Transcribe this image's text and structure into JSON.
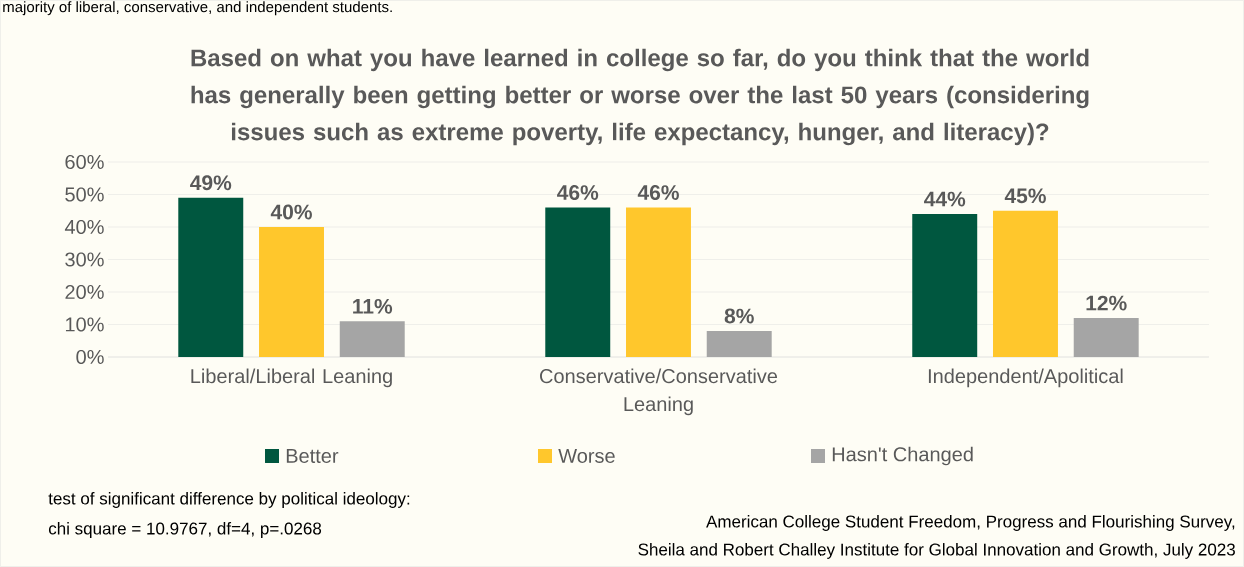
{
  "chart_data": {
    "type": "bar",
    "title": "Based on what you have learned in college so far, do you think that the world has generally been getting better or worse over the last 50 years (considering issues such as extreme poverty, life expectancy, hunger, and literacy)?",
    "categories": [
      "Liberal/Liberal Leaning",
      "Conservative/Conservative Leaning",
      "Independent/Apolitical"
    ],
    "series": [
      {
        "name": "Better",
        "color": "#00573f",
        "values": [
          49,
          46,
          44
        ],
        "value_labels": [
          "49%",
          "46%",
          "44%"
        ]
      },
      {
        "name": "Worse",
        "color": "#ffc72c",
        "values": [
          40,
          46,
          45
        ],
        "value_labels": [
          "40%",
          "46%",
          "45%"
        ]
      },
      {
        "name": "Hasn't Changed",
        "color": "#a5a5a5",
        "values": [
          11,
          8,
          12
        ],
        "value_labels": [
          "11%",
          "8%",
          "12%"
        ]
      }
    ],
    "ylim": [
      0,
      60
    ],
    "yticks": [
      {
        "value": 0,
        "label": "0%"
      },
      {
        "value": 10,
        "label": "10%"
      },
      {
        "value": 20,
        "label": "20%"
      },
      {
        "value": 30,
        "label": "30%"
      },
      {
        "value": 40,
        "label": "40%"
      },
      {
        "value": 50,
        "label": "50%"
      },
      {
        "value": 60,
        "label": "60%"
      }
    ],
    "grid": "y",
    "legend": "bottom",
    "annotations": [
      "majority of liberal, conservative, and independent students.",
      "test of significant difference by political ideology:",
      "chi square = 10.9767, df=4, p=.0268",
      "American College Student Freedom, Progress and Flourishing Survey,",
      "Sheila and Robert Challey Institute for Global Innovation and Growth, July 2023"
    ]
  }
}
